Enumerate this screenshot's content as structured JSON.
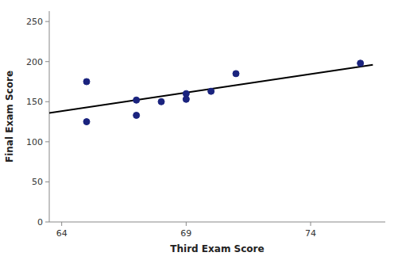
{
  "chart_data": {
    "type": "scatter",
    "x_label": "Third Exam Score",
    "y_label": "Final Exam Score",
    "series": [
      {
        "type": "line",
        "color": "#000000",
        "x": [
          63.5,
          76.5
        ],
        "values": [
          136.0,
          196.0
        ]
      },
      {
        "type": "scatter",
        "color": "#1a237e",
        "x": [
          65,
          65,
          67,
          67,
          68,
          69,
          69,
          70,
          71,
          76
        ],
        "values": [
          175,
          125,
          133,
          152,
          150,
          160,
          153,
          163,
          185,
          198
        ]
      }
    ],
    "xlim": [
      63.5,
      77.0
    ],
    "ylim": [
      0,
      263
    ],
    "xticks": [
      64,
      69,
      74
    ],
    "yticks": [
      0,
      50,
      100,
      150,
      200,
      250
    ],
    "grid": false
  }
}
